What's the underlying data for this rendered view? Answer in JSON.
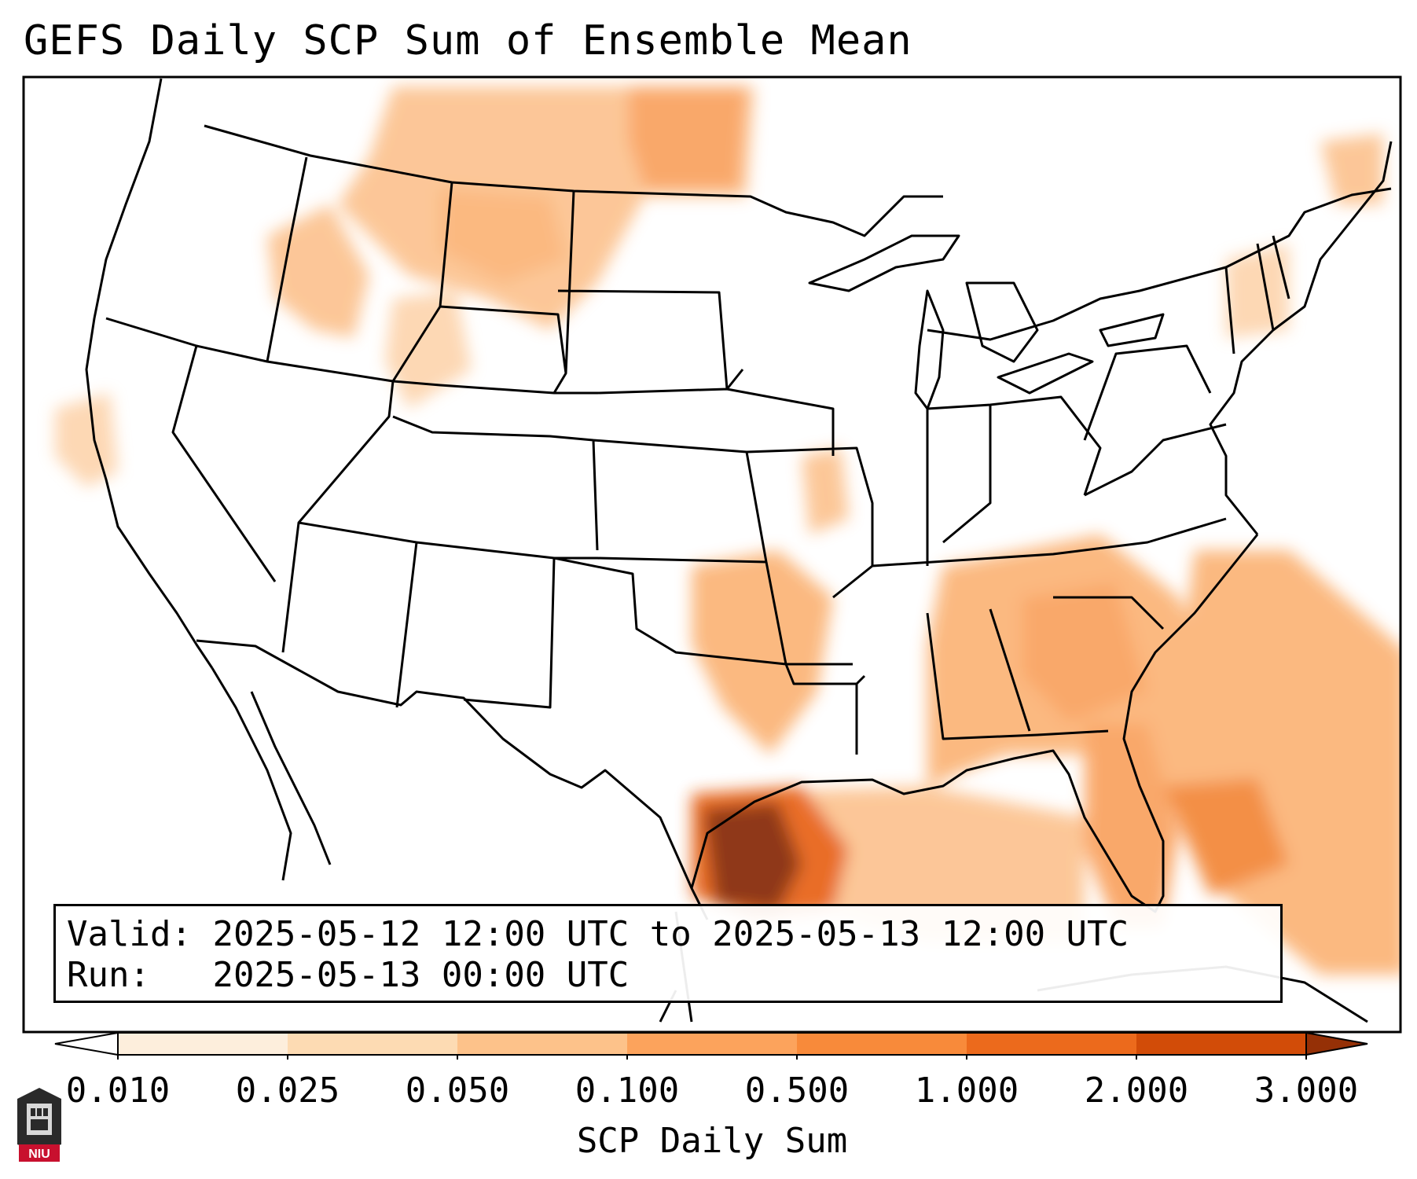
{
  "title": "GEFS Daily SCP Sum of Ensemble Mean",
  "info": {
    "valid_label": "Valid:",
    "valid_value": "2025-05-12 12:00 UTC to 2025-05-13 12:00 UTC",
    "run_label": "Run:",
    "run_value": "2025-05-13 00:00 UTC"
  },
  "colorbar": {
    "label": "SCP Daily Sum",
    "ticks": [
      "0.010",
      "0.025",
      "0.050",
      "0.100",
      "0.500",
      "1.000",
      "2.000",
      "3.000"
    ],
    "colors": [
      "#fdeedc",
      "#fddbb3",
      "#fdc28a",
      "#fca35c",
      "#f88a3a",
      "#ec6a1c",
      "#d24c08",
      "#953006"
    ]
  },
  "logo": {
    "text": "NIU"
  },
  "map_colors": {
    "ocean": "#ffffff",
    "land": "#ffffff",
    "border": "#000000",
    "peak": "#8a2e08"
  }
}
